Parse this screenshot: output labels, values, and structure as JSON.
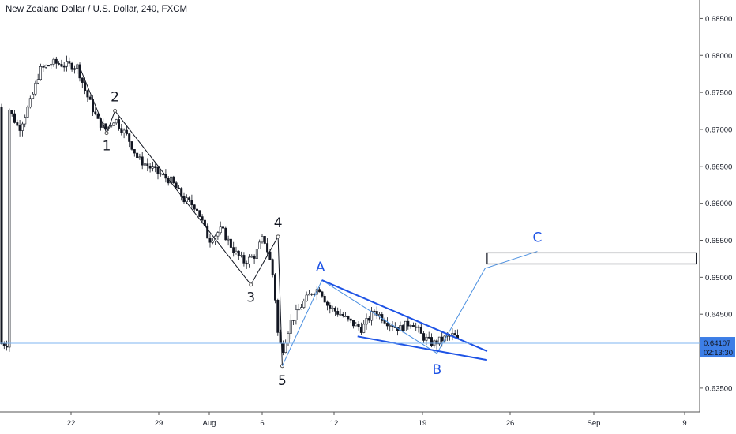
{
  "header": {
    "title": "New Zealand Dollar / U.S. Dollar, 240, FXCM"
  },
  "colors": {
    "up": "#131722",
    "down": "#131722",
    "wave_impulse": "#131722",
    "wave_corrective": "#1e53e5",
    "light_blue": "#4a8fe0",
    "price_label_bg": "#3d7ee6",
    "price_line": "#7fb6f2"
  },
  "chart_data": {
    "type": "candlestick",
    "title": "New Zealand Dollar / U.S. Dollar, 240, FXCM",
    "instrument": "NZDUSD",
    "interval": "240",
    "source": "FXCM",
    "y_axis": {
      "side": "right",
      "ylim": [
        0.632,
        0.6875
      ],
      "ticks": [
        "0.68500",
        "0.68000",
        "0.67500",
        "0.67000",
        "0.66500",
        "0.66000",
        "0.65500",
        "0.65000",
        "0.64500",
        "0.64000",
        "0.63500"
      ]
    },
    "x_axis": {
      "ticks": [
        "22",
        "29",
        "Aug",
        "6",
        "12",
        "19",
        "26",
        "Sep",
        "9"
      ],
      "start_date": "2019-07-17",
      "end_date": "2019-09-10"
    },
    "grid": false,
    "last_price": "0.64107",
    "countdown": "02:13:30",
    "price_path": [
      [
        "2019-07-17T00",
        0.673
      ],
      [
        "2019-07-17T20",
        0.67
      ],
      [
        "2019-07-18T20",
        0.674
      ],
      [
        "2019-07-19T12",
        0.678
      ],
      [
        "2019-07-20T12",
        0.679
      ],
      [
        "2019-07-22T12",
        0.6785
      ],
      [
        "2019-07-23T04",
        0.675
      ],
      [
        "2019-07-24T04",
        0.671
      ],
      [
        "2019-07-24T20",
        0.67
      ],
      [
        "2019-07-25T12",
        0.6715
      ],
      [
        "2019-07-25T20",
        0.6705
      ],
      [
        "2019-07-26T12",
        0.669
      ],
      [
        "2019-07-27T08",
        0.666
      ],
      [
        "2019-07-29T00",
        0.664
      ],
      [
        "2019-07-30T00",
        0.663
      ],
      [
        "2019-07-31T00",
        0.6605
      ],
      [
        "2019-08-01T00",
        0.6595
      ],
      [
        "2019-08-02T00",
        0.655
      ],
      [
        "2019-08-03T00",
        0.6565
      ],
      [
        "2019-08-04T00",
        0.6535
      ],
      [
        "2019-08-04T20",
        0.652
      ],
      [
        "2019-08-05T16",
        0.653
      ],
      [
        "2019-08-06T08",
        0.6555
      ],
      [
        "2019-08-06T20",
        0.6525
      ],
      [
        "2019-08-07T04",
        0.6495
      ],
      [
        "2019-08-07T12",
        0.642
      ],
      [
        "2019-08-07T20",
        0.64
      ],
      [
        "2019-08-08T12",
        0.644
      ],
      [
        "2019-08-09T12",
        0.6465
      ],
      [
        "2019-08-10T04",
        0.648
      ],
      [
        "2019-08-10T20",
        0.6485
      ],
      [
        "2019-08-11T12",
        0.646
      ],
      [
        "2019-08-12T12",
        0.645
      ],
      [
        "2019-08-13T04",
        0.644
      ],
      [
        "2019-08-14T04",
        0.643
      ],
      [
        "2019-08-15T04",
        0.6455
      ],
      [
        "2019-08-16T04",
        0.644
      ],
      [
        "2019-08-17T04",
        0.643
      ],
      [
        "2019-08-18T04",
        0.644
      ],
      [
        "2019-08-19T00",
        0.642
      ],
      [
        "2019-08-19T20",
        0.641
      ],
      [
        "2019-08-20T20",
        0.6418
      ],
      [
        "2019-08-21T12",
        0.6422
      ],
      [
        "2019-08-22T00",
        0.641
      ]
    ],
    "annotations": {
      "impulse_wave": {
        "points": [
          [
            "2019-07-22T16",
            0.6785
          ],
          [
            "2019-07-24T20",
            0.6695
          ],
          [
            "2019-07-25T12",
            0.6725
          ],
          [
            "2019-08-05T08",
            0.649
          ],
          [
            "2019-08-07T12",
            0.6555
          ],
          [
            "2019-08-07T20",
            0.638
          ]
        ],
        "labels": [
          "1",
          "2",
          "3",
          "4",
          "5"
        ]
      },
      "corrective_wave": {
        "points": [
          [
            "2019-08-07T20",
            0.638
          ],
          [
            "2019-08-11T00",
            0.6496
          ],
          [
            "2019-08-20T04",
            0.6397
          ],
          [
            "2019-08-24T00",
            0.6512
          ],
          [
            "2019-08-28T04",
            0.6535
          ]
        ],
        "labels": [
          "A",
          "B",
          "C"
        ]
      },
      "wedge": {
        "upper": [
          [
            "2019-08-11T00",
            0.6496
          ],
          [
            "2019-08-24T04",
            0.64
          ]
        ],
        "lower": [
          [
            "2019-08-13T20",
            0.642
          ],
          [
            "2019-08-24T04",
            0.6388
          ]
        ]
      },
      "target_box": {
        "from_date": "2019-08-24T04",
        "to_date": "2019-09-09T20",
        "top": 0.6533,
        "bottom": 0.6518
      }
    }
  }
}
